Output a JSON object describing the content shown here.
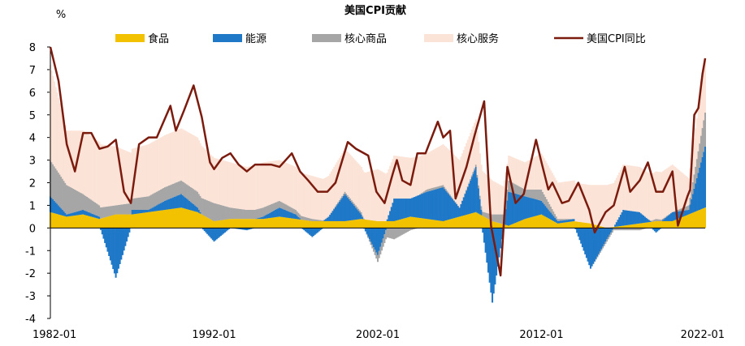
{
  "chart_data": {
    "type": "area",
    "title": "美国CPI贡献",
    "ylabel": "%",
    "xlabel": "",
    "ylim": [
      -4,
      8
    ],
    "yticks": [
      -4,
      -3,
      -2,
      -1,
      0,
      1,
      2,
      3,
      4,
      5,
      6,
      7,
      8
    ],
    "xlim": [
      "1982-01",
      "2022-01"
    ],
    "xticks": [
      "1982-01",
      "1992-01",
      "2002-01",
      "2012-01",
      "2022-01"
    ],
    "legend_position": "top",
    "stack_order": [
      "食品",
      "能源",
      "核心商品",
      "核心服务"
    ],
    "series": [
      {
        "name": "食品",
        "kind": "stacked-bar",
        "color": "#F2C200",
        "points": [
          [
            "1982-01",
            0.7
          ],
          [
            "1983-01",
            0.5
          ],
          [
            "1984-01",
            0.6
          ],
          [
            "1985-01",
            0.4
          ],
          [
            "1986-01",
            0.6
          ],
          [
            "1987-01",
            0.6
          ],
          [
            "1988-01",
            0.7
          ],
          [
            "1989-01",
            0.8
          ],
          [
            "1990-01",
            0.9
          ],
          [
            "1991-01",
            0.7
          ],
          [
            "1992-01",
            0.3
          ],
          [
            "1993-01",
            0.4
          ],
          [
            "1994-01",
            0.4
          ],
          [
            "1995-01",
            0.4
          ],
          [
            "1996-01",
            0.5
          ],
          [
            "1997-01",
            0.4
          ],
          [
            "1998-01",
            0.3
          ],
          [
            "1999-01",
            0.3
          ],
          [
            "2000-01",
            0.3
          ],
          [
            "2001-01",
            0.4
          ],
          [
            "2002-01",
            0.3
          ],
          [
            "2003-01",
            0.3
          ],
          [
            "2004-01",
            0.5
          ],
          [
            "2005-01",
            0.4
          ],
          [
            "2006-01",
            0.3
          ],
          [
            "2007-01",
            0.5
          ],
          [
            "2008-01",
            0.7
          ],
          [
            "2009-01",
            0.3
          ],
          [
            "2010-01",
            0.1
          ],
          [
            "2011-01",
            0.4
          ],
          [
            "2012-01",
            0.6
          ],
          [
            "2013-01",
            0.2
          ],
          [
            "2014-01",
            0.3
          ],
          [
            "2015-01",
            0.2
          ],
          [
            "2016-01",
            0.0
          ],
          [
            "2017-01",
            0.1
          ],
          [
            "2018-01",
            0.2
          ],
          [
            "2019-01",
            0.3
          ],
          [
            "2020-01",
            0.3
          ],
          [
            "2021-01",
            0.6
          ],
          [
            "2022-01",
            0.9
          ]
        ]
      },
      {
        "name": "能源",
        "kind": "stacked-bar",
        "color": "#1F78C8",
        "points": [
          [
            "1982-01",
            0.7
          ],
          [
            "1983-01",
            0.1
          ],
          [
            "1984-01",
            0.2
          ],
          [
            "1985-01",
            0.1
          ],
          [
            "1986-01",
            -2.2
          ],
          [
            "1987-01",
            0.2
          ],
          [
            "1988-01",
            0.1
          ],
          [
            "1989-01",
            0.4
          ],
          [
            "1990-01",
            0.6
          ],
          [
            "1991-01",
            0.2
          ],
          [
            "1992-01",
            -0.6
          ],
          [
            "1993-01",
            0.0
          ],
          [
            "1994-01",
            -0.1
          ],
          [
            "1995-01",
            0.1
          ],
          [
            "1996-01",
            0.4
          ],
          [
            "1997-01",
            0.2
          ],
          [
            "1998-01",
            -0.4
          ],
          [
            "1999-01",
            0.2
          ],
          [
            "2000-01",
            1.2
          ],
          [
            "2001-01",
            0.2
          ],
          [
            "2002-01",
            -1.2
          ],
          [
            "2003-01",
            1.0
          ],
          [
            "2004-01",
            0.8
          ],
          [
            "2005-01",
            1.2
          ],
          [
            "2006-01",
            1.5
          ],
          [
            "2007-01",
            0.4
          ],
          [
            "2008-01",
            2.0
          ],
          [
            "2009-01",
            -3.3
          ],
          [
            "2010-01",
            1.5
          ],
          [
            "2011-01",
            1.0
          ],
          [
            "2012-01",
            0.6
          ],
          [
            "2013-01",
            0.1
          ],
          [
            "2014-01",
            0.1
          ],
          [
            "2015-01",
            -1.8
          ],
          [
            "2016-01",
            -0.5
          ],
          [
            "2017-01",
            0.7
          ],
          [
            "2018-01",
            0.5
          ],
          [
            "2019-01",
            -0.2
          ],
          [
            "2020-01",
            0.4
          ],
          [
            "2021-01",
            0.2
          ],
          [
            "2022-01",
            2.7
          ]
        ]
      },
      {
        "name": "核心商品",
        "kind": "stacked-bar",
        "color": "#A6A6A6",
        "points": [
          [
            "1982-01",
            1.6
          ],
          [
            "1983-01",
            1.3
          ],
          [
            "1984-01",
            0.7
          ],
          [
            "1985-01",
            0.5
          ],
          [
            "1986-01",
            0.4
          ],
          [
            "1987-01",
            0.5
          ],
          [
            "1988-01",
            0.6
          ],
          [
            "1989-01",
            0.6
          ],
          [
            "1990-01",
            0.6
          ],
          [
            "1991-01",
            0.7
          ],
          [
            "1992-01",
            0.8
          ],
          [
            "1993-01",
            0.5
          ],
          [
            "1994-01",
            0.4
          ],
          [
            "1995-01",
            0.4
          ],
          [
            "1996-01",
            0.3
          ],
          [
            "1997-01",
            0.2
          ],
          [
            "1998-01",
            0.1
          ],
          [
            "1999-01",
            0.0
          ],
          [
            "2000-01",
            0.1
          ],
          [
            "2001-01",
            0.1
          ],
          [
            "2002-01",
            -0.3
          ],
          [
            "2003-01",
            -0.5
          ],
          [
            "2004-01",
            -0.1
          ],
          [
            "2005-01",
            0.1
          ],
          [
            "2006-01",
            0.1
          ],
          [
            "2007-01",
            0.0
          ],
          [
            "2008-01",
            0.1
          ],
          [
            "2009-01",
            0.3
          ],
          [
            "2010-01",
            0.5
          ],
          [
            "2011-01",
            0.3
          ],
          [
            "2012-01",
            0.5
          ],
          [
            "2013-01",
            0.1
          ],
          [
            "2014-01",
            0.0
          ],
          [
            "2015-01",
            0.0
          ],
          [
            "2016-01",
            -0.1
          ],
          [
            "2017-01",
            -0.1
          ],
          [
            "2018-01",
            -0.1
          ],
          [
            "2019-01",
            0.1
          ],
          [
            "2020-01",
            0.0
          ],
          [
            "2021-01",
            0.2
          ],
          [
            "2022-01",
            1.5
          ]
        ]
      },
      {
        "name": "核心服务",
        "kind": "stacked-bar",
        "color": "#FBE3D7",
        "points": [
          [
            "1982-01",
            4.2
          ],
          [
            "1983-01",
            2.4
          ],
          [
            "1984-01",
            2.8
          ],
          [
            "1985-01",
            2.8
          ],
          [
            "1986-01",
            2.6
          ],
          [
            "1987-01",
            2.2
          ],
          [
            "1988-01",
            2.3
          ],
          [
            "1989-01",
            2.3
          ],
          [
            "1990-01",
            2.3
          ],
          [
            "1991-01",
            2.4
          ],
          [
            "1992-01",
            2.0
          ],
          [
            "1993-01",
            2.0
          ],
          [
            "1994-01",
            1.9
          ],
          [
            "1995-01",
            2.0
          ],
          [
            "1996-01",
            1.8
          ],
          [
            "1997-01",
            1.9
          ],
          [
            "1998-01",
            1.9
          ],
          [
            "1999-01",
            1.8
          ],
          [
            "2000-01",
            1.9
          ],
          [
            "2001-01",
            2.0
          ],
          [
            "2002-01",
            2.3
          ],
          [
            "2003-01",
            1.9
          ],
          [
            "2004-01",
            1.8
          ],
          [
            "2005-01",
            1.6
          ],
          [
            "2006-01",
            1.8
          ],
          [
            "2007-01",
            2.1
          ],
          [
            "2008-01",
            2.0
          ],
          [
            "2009-01",
            1.5
          ],
          [
            "2010-01",
            1.1
          ],
          [
            "2011-01",
            1.2
          ],
          [
            "2012-01",
            1.6
          ],
          [
            "2013-01",
            1.6
          ],
          [
            "2014-01",
            1.7
          ],
          [
            "2015-01",
            1.7
          ],
          [
            "2016-01",
            1.9
          ],
          [
            "2017-01",
            2.0
          ],
          [
            "2018-01",
            2.0
          ],
          [
            "2019-01",
            2.1
          ],
          [
            "2020-01",
            2.1
          ],
          [
            "2021-01",
            1.2
          ],
          [
            "2022-01",
            2.4
          ]
        ]
      },
      {
        "name": "美国CPI同比",
        "kind": "line",
        "color": "#7B1B0E",
        "points": [
          [
            "1982-01",
            8.0
          ],
          [
            "1982-07",
            6.5
          ],
          [
            "1983-01",
            3.7
          ],
          [
            "1983-07",
            2.5
          ],
          [
            "1984-01",
            4.2
          ],
          [
            "1984-07",
            4.2
          ],
          [
            "1985-01",
            3.5
          ],
          [
            "1985-07",
            3.6
          ],
          [
            "1986-01",
            3.9
          ],
          [
            "1986-07",
            1.6
          ],
          [
            "1986-12",
            1.1
          ],
          [
            "1987-06",
            3.7
          ],
          [
            "1988-01",
            4.0
          ],
          [
            "1988-07",
            4.0
          ],
          [
            "1989-05",
            5.4
          ],
          [
            "1989-09",
            4.3
          ],
          [
            "1990-03",
            5.2
          ],
          [
            "1990-10",
            6.3
          ],
          [
            "1991-04",
            4.9
          ],
          [
            "1991-10",
            2.9
          ],
          [
            "1992-01",
            2.6
          ],
          [
            "1992-07",
            3.1
          ],
          [
            "1993-01",
            3.3
          ],
          [
            "1993-07",
            2.8
          ],
          [
            "1994-01",
            2.5
          ],
          [
            "1994-07",
            2.8
          ],
          [
            "1995-01",
            2.8
          ],
          [
            "1995-07",
            2.8
          ],
          [
            "1996-01",
            2.7
          ],
          [
            "1996-10",
            3.3
          ],
          [
            "1997-04",
            2.5
          ],
          [
            "1997-10",
            2.1
          ],
          [
            "1998-05",
            1.6
          ],
          [
            "1998-12",
            1.6
          ],
          [
            "1999-06",
            2.0
          ],
          [
            "2000-03",
            3.8
          ],
          [
            "2000-09",
            3.5
          ],
          [
            "2001-06",
            3.2
          ],
          [
            "2001-12",
            1.6
          ],
          [
            "2002-06",
            1.1
          ],
          [
            "2002-12",
            2.4
          ],
          [
            "2003-03",
            3.0
          ],
          [
            "2003-07",
            2.1
          ],
          [
            "2004-01",
            1.9
          ],
          [
            "2004-06",
            3.3
          ],
          [
            "2004-12",
            3.3
          ],
          [
            "2005-09",
            4.7
          ],
          [
            "2006-01",
            4.0
          ],
          [
            "2006-06",
            4.3
          ],
          [
            "2006-10",
            1.3
          ],
          [
            "2007-06",
            2.7
          ],
          [
            "2007-12",
            4.1
          ],
          [
            "2008-07",
            5.6
          ],
          [
            "2008-12",
            0.1
          ],
          [
            "2009-07",
            -2.1
          ],
          [
            "2009-12",
            2.7
          ],
          [
            "2010-06",
            1.1
          ],
          [
            "2010-12",
            1.5
          ],
          [
            "2011-09",
            3.9
          ],
          [
            "2012-01",
            2.9
          ],
          [
            "2012-06",
            1.7
          ],
          [
            "2012-09",
            2.0
          ],
          [
            "2013-04",
            1.1
          ],
          [
            "2013-09",
            1.2
          ],
          [
            "2014-04",
            2.0
          ],
          [
            "2014-12",
            0.8
          ],
          [
            "2015-04",
            -0.2
          ],
          [
            "2015-12",
            0.7
          ],
          [
            "2016-06",
            1.0
          ],
          [
            "2017-02",
            2.7
          ],
          [
            "2017-06",
            1.6
          ],
          [
            "2018-01",
            2.1
          ],
          [
            "2018-07",
            2.9
          ],
          [
            "2019-01",
            1.6
          ],
          [
            "2019-06",
            1.6
          ],
          [
            "2020-01",
            2.5
          ],
          [
            "2020-05",
            0.1
          ],
          [
            "2020-12",
            1.4
          ],
          [
            "2021-02",
            1.7
          ],
          [
            "2021-05",
            5.0
          ],
          [
            "2021-08",
            5.3
          ],
          [
            "2021-11",
            6.8
          ],
          [
            "2022-01",
            7.5
          ]
        ]
      }
    ]
  }
}
